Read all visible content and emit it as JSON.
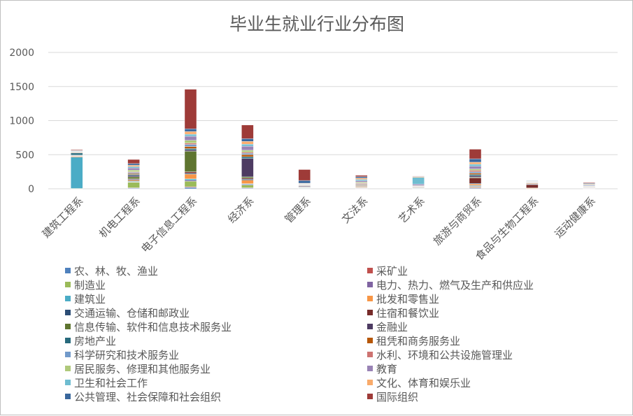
{
  "chart_data": {
    "type": "bar",
    "stacked": true,
    "title": "毕业生就业行业分布图",
    "xlabel": "",
    "ylabel": "",
    "ylim": [
      0,
      2000
    ],
    "yticks": [
      0,
      500,
      1000,
      1500,
      2000
    ],
    "grid": true,
    "legend_position": "bottom",
    "categories": [
      "建筑工程系",
      "机电工程系",
      "电子信息工程系",
      "经济系",
      "管理系",
      "文法系",
      "艺术系",
      "旅游与商贸系",
      "食品与生物工程系",
      "运动健康系"
    ],
    "colors": {
      "农、林、牧、渔业": "#4f81bd",
      "采矿业": "#c0504d",
      "制造业": "#9bbb59",
      "电力、热力、燃气及生产和供应业": "#8064a2",
      "建筑业": "#4bacc6",
      "批发和零售业": "#f79646",
      "交通运输、仓储和邮政业": "#2c4d75",
      "住宿和餐饮业": "#772c2a",
      "信息传输、软件和信息技术服务业": "#5f7530",
      "金融业": "#4d3b62",
      "房地产业": "#276a7c",
      "租凭和商务服务业": "#b65708",
      "科学研究和技术服务业": "#729aca",
      "水利、环境和公共设施管理业": "#cd7371",
      "居民服务、修理和其他服务业": "#afc97a",
      "教育": "#9983b5",
      "卫生和社会工作": "#6fbdd1",
      "文化、体育和娱乐业": "#f9ab6b",
      "公共管理、社会保障和社会组织": "#3a679c",
      "国际组织": "#9e3b38"
    },
    "series": [
      {
        "name": "农、林、牧、渔业",
        "values": [
          0,
          10,
          20,
          10,
          5,
          3,
          2,
          10,
          0,
          3
        ]
      },
      {
        "name": "采矿业",
        "values": [
          0,
          5,
          10,
          5,
          0,
          2,
          0,
          10,
          2,
          2
        ]
      },
      {
        "name": "制造业",
        "values": [
          5,
          80,
          80,
          40,
          5,
          5,
          3,
          10,
          5,
          3
        ]
      },
      {
        "name": "电力、热力、燃气及生产和供应业",
        "values": [
          0,
          5,
          15,
          10,
          3,
          3,
          2,
          10,
          0,
          2
        ]
      },
      {
        "name": "建筑业",
        "values": [
          460,
          10,
          20,
          10,
          3,
          5,
          3,
          10,
          0,
          2
        ]
      },
      {
        "name": "批发和零售业",
        "values": [
          10,
          15,
          70,
          50,
          5,
          10,
          5,
          20,
          5,
          3
        ]
      },
      {
        "name": "交通运输、仓储和邮政业",
        "values": [
          5,
          10,
          15,
          15,
          3,
          5,
          2,
          10,
          0,
          2
        ]
      },
      {
        "name": "住宿和餐饮业",
        "values": [
          5,
          10,
          20,
          15,
          5,
          5,
          3,
          80,
          50,
          2
        ]
      },
      {
        "name": "信息传输、软件和信息技术服务业",
        "values": [
          5,
          30,
          300,
          20,
          5,
          5,
          3,
          10,
          0,
          2
        ]
      },
      {
        "name": "金融业",
        "values": [
          5,
          20,
          20,
          270,
          10,
          5,
          5,
          20,
          5,
          3
        ]
      },
      {
        "name": "房地产业",
        "values": [
          30,
          15,
          20,
          25,
          5,
          5,
          3,
          20,
          5,
          3
        ]
      },
      {
        "name": "租凭和商务服务业",
        "values": [
          5,
          15,
          30,
          30,
          5,
          10,
          3,
          20,
          10,
          3
        ]
      },
      {
        "name": "科学研究和技术服务业",
        "values": [
          5,
          15,
          30,
          20,
          5,
          10,
          5,
          20,
          5,
          3
        ]
      },
      {
        "name": "水利、环境和公共设施管理业",
        "values": [
          5,
          10,
          20,
          15,
          3,
          10,
          3,
          20,
          5,
          3
        ]
      },
      {
        "name": "居民服务、修理和其他服务业",
        "values": [
          5,
          25,
          40,
          30,
          5,
          15,
          5,
          20,
          5,
          5
        ]
      },
      {
        "name": "教育",
        "values": [
          5,
          30,
          60,
          60,
          5,
          20,
          20,
          40,
          5,
          10
        ]
      },
      {
        "name": "卫生和社会工作",
        "values": [
          5,
          20,
          30,
          30,
          5,
          20,
          100,
          30,
          5,
          10
        ]
      },
      {
        "name": "文化、体育和娱乐业",
        "values": [
          5,
          20,
          40,
          40,
          5,
          20,
          10,
          30,
          5,
          10
        ]
      },
      {
        "name": "公共管理、社会保障和社会组织",
        "values": [
          5,
          25,
          40,
          40,
          40,
          20,
          5,
          50,
          5,
          10
        ]
      },
      {
        "name": "国际组织",
        "values": [
          10,
          60,
          580,
          200,
          160,
          20,
          5,
          140,
          0,
          10
        ]
      }
    ]
  }
}
